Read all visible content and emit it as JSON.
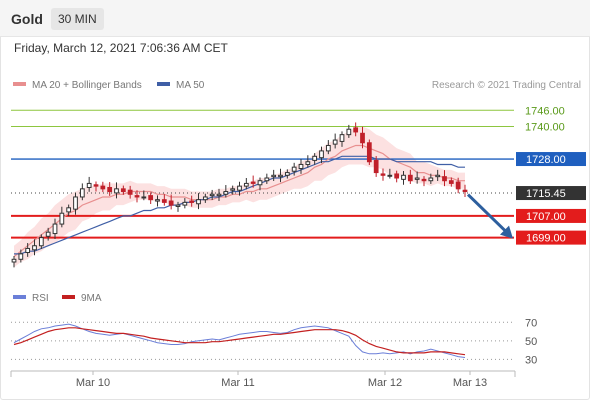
{
  "header": {
    "instrument": "Gold",
    "timeframe": "30 MIN",
    "datetime": "Friday, March 12, 2021 7:06:36 AM CET"
  },
  "legend": {
    "bollinger_label": "MA 20 + Bollinger Bands",
    "ma50_label": "MA 50",
    "credit": "Research © 2021 Trading Central",
    "rsi_label": "RSI",
    "rsi_ma_label": "9MA"
  },
  "colors": {
    "bollinger": "#e88f8f",
    "band_fill": "#fbd7d7",
    "ma50": "#3f5fa6",
    "support": "#e31c1c",
    "resistance": "#8dc63f",
    "pivot": "#1f5fbf",
    "last": "#333333",
    "candle_up": "#333333",
    "candle_down": "#c0202a",
    "arrow": "#2d5f9e",
    "rsi": "#6b7fd8",
    "rsi_ma": "#c32020"
  },
  "chart_data": {
    "type": "candlestick",
    "ylim": [
      1690,
      1752
    ],
    "x_ticks": [
      "Mar 10",
      "Mar 11",
      "Mar 12",
      "Mar 13"
    ],
    "close": [
      1691,
      1693,
      1695,
      1696,
      1699,
      1701,
      1704,
      1708,
      1710,
      1714,
      1717,
      1719,
      1718,
      1717,
      1716,
      1717,
      1716,
      1715,
      1714,
      1714,
      1713,
      1713,
      1712,
      1711,
      1711,
      1712,
      1712,
      1713,
      1714,
      1715,
      1715,
      1716,
      1717,
      1718,
      1719,
      1719,
      1720,
      1721,
      1722,
      1722,
      1723,
      1725,
      1726,
      1727,
      1729,
      1731,
      1733,
      1735,
      1737,
      1739,
      1738,
      1734,
      1727,
      1723,
      1722,
      1722,
      1721,
      1722,
      1720,
      1721,
      1720,
      1721,
      1722,
      1720,
      1719,
      1717,
      1716
    ],
    "sma20": [
      1692,
      1694,
      1696,
      1698,
      1700,
      1702,
      1704,
      1706,
      1708,
      1709,
      1711,
      1712,
      1713,
      1714,
      1714,
      1715,
      1715,
      1716,
      1716,
      1716,
      1716,
      1715,
      1715,
      1714,
      1714,
      1714,
      1713,
      1713,
      1713,
      1713,
      1714,
      1714,
      1715,
      1715,
      1716,
      1716,
      1717,
      1717,
      1718,
      1719,
      1720,
      1721,
      1722,
      1723,
      1725,
      1726,
      1728,
      1729,
      1731,
      1732,
      1733,
      1733,
      1732,
      1731,
      1730,
      1728,
      1727,
      1726,
      1725,
      1723,
      1723,
      1722,
      1722,
      1721,
      1721,
      1720,
      1720
    ],
    "ma50": [
      1693,
      1693,
      1694,
      1694,
      1695,
      1696,
      1697,
      1698,
      1699,
      1700,
      1701,
      1702,
      1703,
      1704,
      1705,
      1706,
      1707,
      1707,
      1708,
      1709,
      1709,
      1710,
      1710,
      1711,
      1711,
      1712,
      1712,
      1713,
      1713,
      1714,
      1714,
      1715,
      1716,
      1716,
      1717,
      1718,
      1719,
      1720,
      1721,
      1721,
      1722,
      1723,
      1724,
      1725,
      1726,
      1727,
      1727,
      1728,
      1729,
      1729,
      1729,
      1729,
      1729,
      1728,
      1728,
      1728,
      1727,
      1727,
      1727,
      1727,
      1727,
      1727,
      1726,
      1726,
      1726,
      1725,
      1725
    ],
    "band_width": [
      4,
      4,
      5,
      5,
      6,
      6,
      7,
      7,
      7,
      7,
      6,
      6,
      5,
      5,
      5,
      4,
      4,
      4,
      3,
      3,
      3,
      3,
      3,
      3,
      3,
      3,
      3,
      3,
      3,
      3,
      3,
      3,
      3,
      3,
      3,
      4,
      4,
      4,
      4,
      4,
      4,
      4,
      5,
      5,
      5,
      6,
      6,
      6,
      6,
      6,
      7,
      7,
      7,
      6,
      6,
      6,
      5,
      5,
      5,
      4,
      4,
      4,
      3,
      3,
      3,
      3,
      3
    ],
    "levels": [
      {
        "label": "1746.00",
        "value": 1746,
        "kind": "resistance"
      },
      {
        "label": "1740.00",
        "value": 1740,
        "kind": "resistance"
      },
      {
        "label": "1728.00",
        "value": 1728,
        "kind": "pivot"
      },
      {
        "label": "1715.45",
        "value": 1715.45,
        "kind": "last"
      },
      {
        "label": "1707.00",
        "value": 1707,
        "kind": "support"
      },
      {
        "label": "1699.00",
        "value": 1699,
        "kind": "support"
      }
    ],
    "projection_target": 1699,
    "rsi": {
      "ylim": [
        25,
        80
      ],
      "levels": [
        "70",
        "50",
        "30"
      ],
      "values": [
        48,
        52,
        56,
        60,
        63,
        64,
        66,
        67,
        68,
        66,
        63,
        60,
        58,
        57,
        56,
        57,
        58,
        56,
        54,
        52,
        50,
        48,
        47,
        46,
        46,
        47,
        49,
        50,
        51,
        52,
        51,
        53,
        55,
        57,
        58,
        59,
        60,
        60,
        59,
        58,
        59,
        62,
        64,
        65,
        66,
        65,
        64,
        61,
        58,
        55,
        45,
        38,
        36,
        36,
        37,
        36,
        37,
        38,
        36,
        38,
        39,
        41,
        39,
        37,
        35,
        33,
        32
      ],
      "ma": [
        46,
        48,
        51,
        54,
        57,
        60,
        62,
        63,
        64,
        64,
        63,
        62,
        61,
        60,
        59,
        58,
        58,
        57,
        56,
        55,
        53,
        52,
        51,
        50,
        49,
        48,
        48,
        48,
        48,
        49,
        49,
        50,
        51,
        52,
        53,
        54,
        55,
        56,
        57,
        57,
        58,
        59,
        60,
        61,
        62,
        62,
        62,
        62,
        61,
        59,
        56,
        51,
        47,
        44,
        42,
        40,
        38,
        37,
        37,
        37,
        37,
        38,
        38,
        38,
        37,
        36,
        35
      ]
    }
  }
}
